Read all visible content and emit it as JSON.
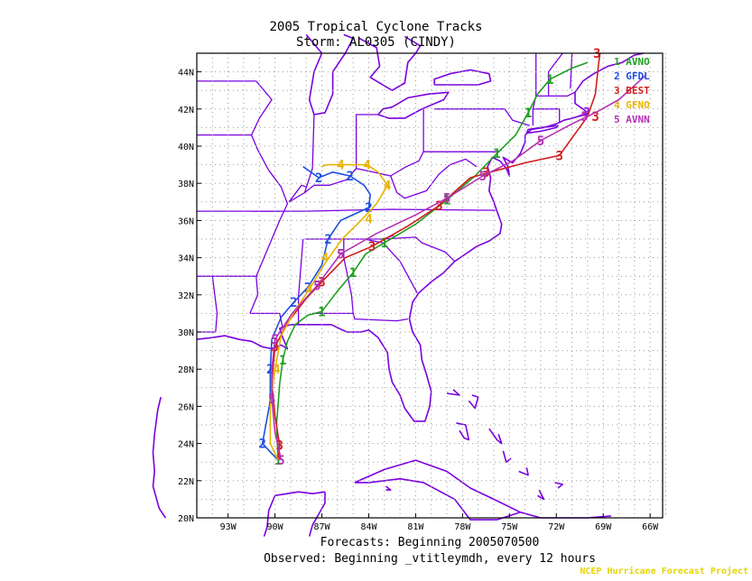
{
  "header": {
    "title": "2005 Tropical Cyclone Tracks",
    "subtitle": "Storm: AL0305 (CINDY)"
  },
  "footer": {
    "forecasts": "Forecasts: Beginning 2005070500",
    "observed": "Observed: Beginning _vtitleymdh, every 12 hours",
    "credit": "NCEP Hurricane Forecast Project"
  },
  "colors": {
    "land": "#7a00e0",
    "grid": "#9a9a9a",
    "credit": "#e6d400"
  },
  "chart_data": {
    "type": "line",
    "title": "2005 Tropical Cyclone Tracks",
    "subtitle": "Storm: AL0305 (CINDY)",
    "xlim": [
      -95,
      -65.2
    ],
    "ylim": [
      20,
      45
    ],
    "x_ticks": [
      -93,
      -90,
      -87,
      -84,
      -81,
      -78,
      -75,
      -72,
      -69,
      -66
    ],
    "x_tick_labels": [
      "93W",
      "90W",
      "87W",
      "84W",
      "81W",
      "78W",
      "75W",
      "72W",
      "69W",
      "66W"
    ],
    "y_ticks": [
      20,
      22,
      24,
      26,
      28,
      30,
      32,
      34,
      36,
      38,
      40,
      42,
      44
    ],
    "y_tick_labels": [
      "20N",
      "22N",
      "24N",
      "26N",
      "28N",
      "30N",
      "32N",
      "34N",
      "36N",
      "38N",
      "40N",
      "42N",
      "44N"
    ],
    "grid": true,
    "legend_position": "top-right",
    "series": [
      {
        "id": "1",
        "name": "AVNO",
        "color": "#1ea01e",
        "points": [
          [
            -89.8,
            23.1
          ],
          [
            -89.9,
            25.0
          ],
          [
            -89.7,
            27.2
          ],
          [
            -89.5,
            28.5
          ],
          [
            -89.2,
            29.5
          ],
          [
            -88.7,
            30.4
          ],
          [
            -87.9,
            30.9
          ],
          [
            -87.0,
            31.1
          ],
          [
            -86.0,
            32.2
          ],
          [
            -85.0,
            33.2
          ],
          [
            -84.2,
            34.2
          ],
          [
            -83.0,
            34.8
          ],
          [
            -81.0,
            35.8
          ],
          [
            -79.0,
            37.1
          ],
          [
            -77.2,
            38.4
          ],
          [
            -75.8,
            39.6
          ],
          [
            -74.6,
            40.6
          ],
          [
            -73.8,
            41.8
          ],
          [
            -73.2,
            42.8
          ],
          [
            -72.4,
            43.6
          ],
          [
            -71.0,
            44.2
          ],
          [
            -70.0,
            44.5
          ]
        ],
        "markers": [
          [
            -89.8,
            23.1
          ],
          [
            -89.5,
            28.5
          ],
          [
            -87.0,
            31.1
          ],
          [
            -85.0,
            33.2
          ],
          [
            -83.0,
            34.8
          ],
          [
            -79.0,
            37.1
          ],
          [
            -75.8,
            39.6
          ],
          [
            -73.8,
            41.8
          ],
          [
            -72.4,
            43.6
          ]
        ]
      },
      {
        "id": "2",
        "name": "GFDL",
        "color": "#1e50e0",
        "points": [
          [
            -89.8,
            23.1
          ],
          [
            -90.8,
            24.0
          ],
          [
            -90.3,
            26.3
          ],
          [
            -90.3,
            28.0
          ],
          [
            -90.2,
            29.6
          ],
          [
            -89.6,
            30.8
          ],
          [
            -88.8,
            31.6
          ],
          [
            -87.9,
            32.4
          ],
          [
            -87.0,
            33.6
          ],
          [
            -86.6,
            35.0
          ],
          [
            -85.8,
            36.0
          ],
          [
            -84.0,
            36.7
          ],
          [
            -83.9,
            37.4
          ],
          [
            -84.3,
            37.9
          ],
          [
            -85.2,
            38.4
          ],
          [
            -86.3,
            38.6
          ],
          [
            -87.2,
            38.3
          ],
          [
            -88.2,
            38.9
          ]
        ],
        "markers": [
          [
            -90.8,
            24.0
          ],
          [
            -90.3,
            28.0
          ],
          [
            -88.8,
            31.6
          ],
          [
            -87.9,
            32.4
          ],
          [
            -86.6,
            35.0
          ],
          [
            -84.0,
            36.7
          ],
          [
            -85.2,
            38.4
          ],
          [
            -87.2,
            38.3
          ]
        ]
      },
      {
        "id": "3",
        "name": "BEST",
        "color": "#d01e1e",
        "points": [
          [
            -89.8,
            23.1
          ],
          [
            -89.7,
            23.9
          ],
          [
            -90.0,
            25.5
          ],
          [
            -90.2,
            27.3
          ],
          [
            -90.0,
            29.2
          ],
          [
            -89.2,
            30.5
          ],
          [
            -88.0,
            31.8
          ],
          [
            -87.0,
            32.7
          ],
          [
            -85.5,
            34.0
          ],
          [
            -83.8,
            34.6
          ],
          [
            -81.5,
            35.7
          ],
          [
            -79.5,
            36.8
          ],
          [
            -77.5,
            38.3
          ],
          [
            -75.8,
            38.7
          ],
          [
            -74.0,
            39.1
          ],
          [
            -71.8,
            39.5
          ],
          [
            -70.0,
            41.6
          ],
          [
            -69.5,
            42.8
          ],
          [
            -69.3,
            44.4
          ],
          [
            -69.2,
            45.0
          ]
        ],
        "markers": [
          [
            -89.7,
            23.9
          ],
          [
            -90.0,
            29.2
          ],
          [
            -87.0,
            32.7
          ],
          [
            -83.8,
            34.6
          ],
          [
            -79.5,
            36.8
          ],
          [
            -76.5,
            38.6
          ],
          [
            -71.8,
            39.5
          ],
          [
            -69.5,
            41.6
          ],
          [
            -69.4,
            45.0
          ]
        ]
      },
      {
        "id": "4",
        "name": "GFNO",
        "color": "#e6b400",
        "points": [
          [
            -89.8,
            23.1
          ],
          [
            -90.3,
            24.0
          ],
          [
            -90.3,
            26.0
          ],
          [
            -90.0,
            28.0
          ],
          [
            -89.6,
            29.8
          ],
          [
            -88.7,
            31.2
          ],
          [
            -87.8,
            32.3
          ],
          [
            -86.8,
            33.7
          ],
          [
            -85.7,
            35.0
          ],
          [
            -84.5,
            36.0
          ],
          [
            -83.5,
            36.9
          ],
          [
            -82.8,
            37.9
          ],
          [
            -83.4,
            38.6
          ],
          [
            -84.1,
            39.0
          ],
          [
            -85.5,
            39.0
          ],
          [
            -86.7,
            39.0
          ],
          [
            -87.0,
            38.9
          ]
        ],
        "markers": [
          [
            -89.9,
            28.0
          ],
          [
            -87.8,
            32.3
          ],
          [
            -86.8,
            34.0
          ],
          [
            -84.0,
            36.1
          ],
          [
            -82.8,
            37.9
          ],
          [
            -84.1,
            39.0
          ],
          [
            -85.8,
            39.0
          ]
        ]
      },
      {
        "id": "5",
        "name": "AVNN",
        "color": "#b432b4",
        "points": [
          [
            -89.6,
            23.1
          ],
          [
            -90.0,
            24.6
          ],
          [
            -90.2,
            26.4
          ],
          [
            -90.2,
            28.0
          ],
          [
            -90.0,
            29.6
          ],
          [
            -88.9,
            31.0
          ],
          [
            -87.3,
            32.5
          ],
          [
            -85.8,
            34.2
          ],
          [
            -83.5,
            35.3
          ],
          [
            -81.0,
            36.3
          ],
          [
            -79.0,
            37.2
          ],
          [
            -76.7,
            38.4
          ],
          [
            -74.8,
            39.2
          ],
          [
            -73.0,
            40.3
          ],
          [
            -71.0,
            41.2
          ],
          [
            -69.5,
            41.8
          ],
          [
            -68.0,
            42.5
          ],
          [
            -66.3,
            43.8
          ]
        ],
        "markers": [
          [
            -89.6,
            23.1
          ],
          [
            -90.2,
            26.4
          ],
          [
            -90.0,
            29.6
          ],
          [
            -87.3,
            32.5
          ],
          [
            -85.8,
            34.2
          ],
          [
            -79.0,
            37.2
          ],
          [
            -76.7,
            38.4
          ],
          [
            -73.0,
            40.3
          ],
          [
            -70.2,
            41.6
          ]
        ]
      }
    ]
  }
}
